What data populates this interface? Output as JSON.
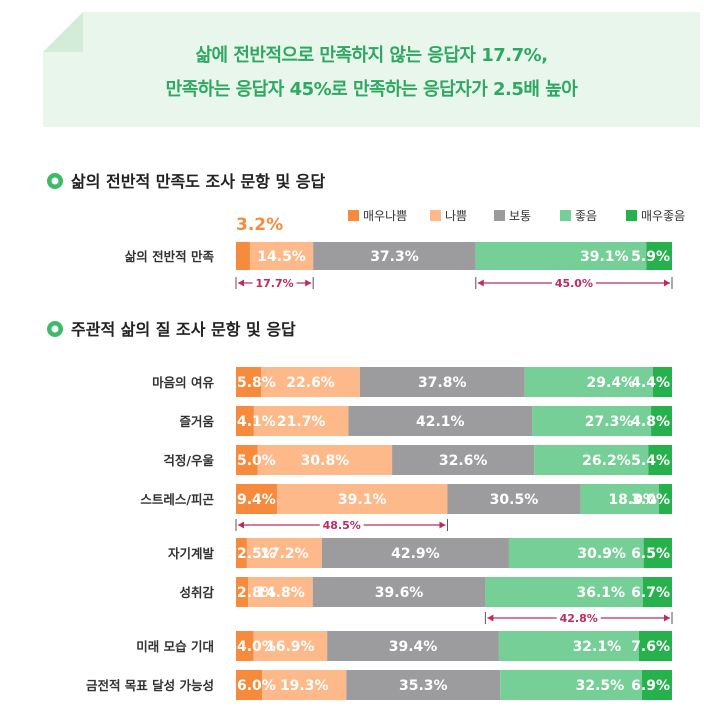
{
  "banner": {
    "line1": "삶에 전반적으로 만족하지 않는 응답자 17.7%,",
    "line2": "만족하는 응답자 45%로 만족하는 응답자가 2.5배 높아"
  },
  "colors": {
    "very_bad": "#f68b3e",
    "bad": "#fdb98a",
    "neutral": "#9c9c9e",
    "good": "#76cf96",
    "very_good": "#26b14c",
    "accent_pink": "#c22a5c",
    "title_green": "#2ea862",
    "banner_bg": "#e9f6ec"
  },
  "chart_data": [
    {
      "type": "bar",
      "stacked": true,
      "orientation": "horizontal",
      "title": "삶의 전반적 만족도 조사 문항 및 응답",
      "legend": [
        "매우나쁨",
        "나쁨",
        "보통",
        "좋음",
        "매우좋음"
      ],
      "legend_position": "top-right",
      "categories": [
        "삶의 전반적 만족"
      ],
      "series": [
        {
          "name": "매우나쁨",
          "values": [
            3.2
          ]
        },
        {
          "name": "나쁨",
          "values": [
            14.5
          ]
        },
        {
          "name": "보통",
          "values": [
            37.3
          ]
        },
        {
          "name": "좋음",
          "values": [
            39.1
          ]
        },
        {
          "name": "매우좋음",
          "values": [
            5.9
          ]
        }
      ],
      "annotations": [
        {
          "text": "17.7%",
          "row": 0,
          "from_segment": 0,
          "to_segment": 1
        },
        {
          "text": "45.0%",
          "row": 0,
          "from_segment": 3,
          "to_segment": 4
        }
      ]
    },
    {
      "type": "bar",
      "stacked": true,
      "orientation": "horizontal",
      "title": "주관적 삶의 질 조사 문항 및 응답",
      "categories": [
        "마음의 여유",
        "즐거움",
        "걱정/우울",
        "스트레스/피곤",
        "자기계발",
        "성취감",
        "미래 모습 기대",
        "금전적 목표 달성 가능성"
      ],
      "series": [
        {
          "name": "매우나쁨",
          "values": [
            5.8,
            4.1,
            5.0,
            9.4,
            2.5,
            2.8,
            4.0,
            6.0
          ]
        },
        {
          "name": "나쁨",
          "values": [
            22.6,
            21.7,
            30.8,
            39.1,
            17.2,
            14.8,
            16.9,
            19.3
          ]
        },
        {
          "name": "보통",
          "values": [
            37.8,
            42.1,
            32.6,
            30.5,
            42.9,
            39.6,
            39.4,
            35.3
          ]
        },
        {
          "name": "좋음",
          "values": [
            29.4,
            27.3,
            26.2,
            18.0,
            30.9,
            36.1,
            32.1,
            32.5
          ]
        },
        {
          "name": "매우좋음",
          "values": [
            4.4,
            4.8,
            5.4,
            3.0,
            6.5,
            6.7,
            7.6,
            6.9
          ]
        }
      ],
      "annotations": [
        {
          "text": "48.5%",
          "row": 3,
          "from_segment": 0,
          "to_segment": 1
        },
        {
          "text": "42.8%",
          "row": 5,
          "from_segment": 3,
          "to_segment": 4
        }
      ]
    }
  ]
}
